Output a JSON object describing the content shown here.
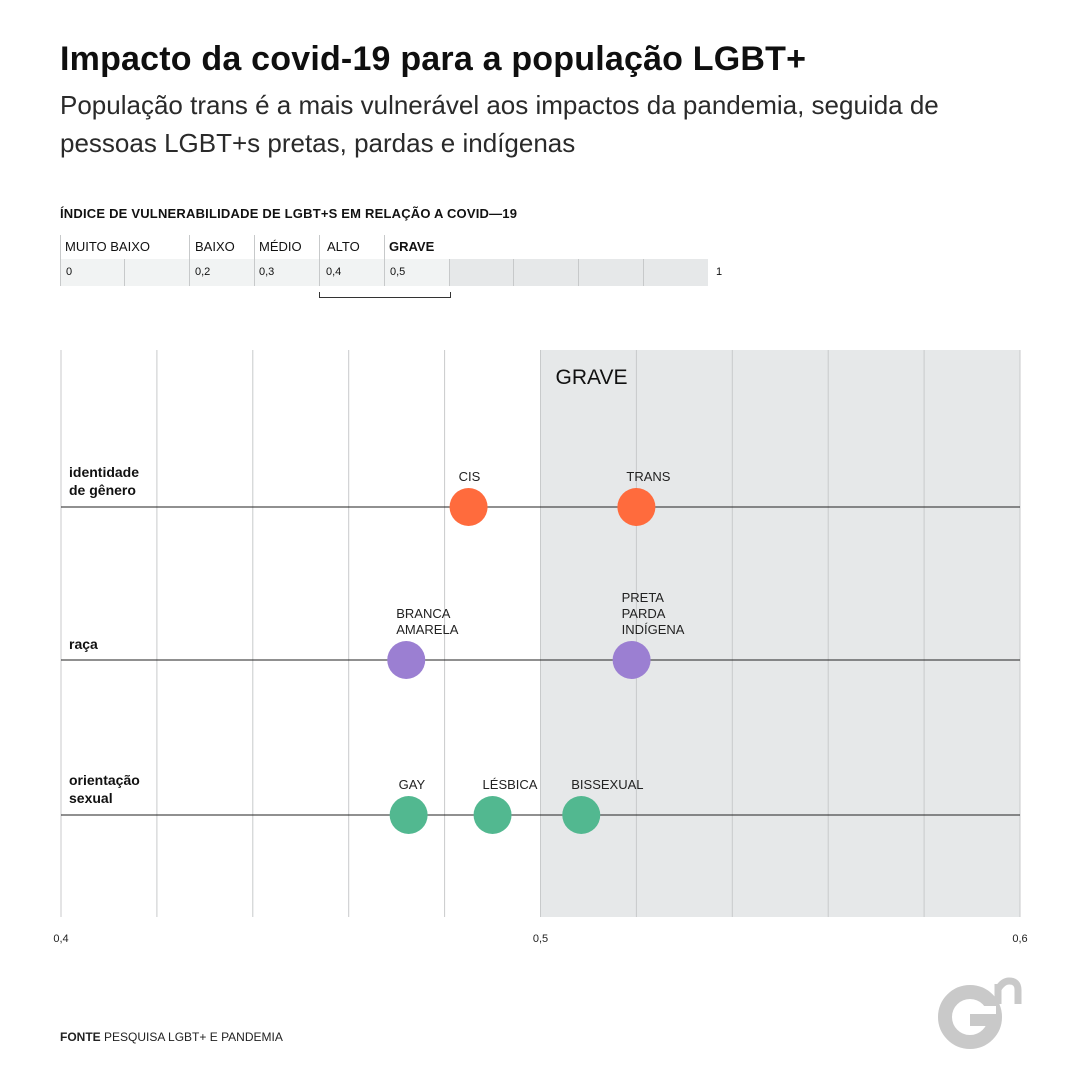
{
  "header": {
    "title": "Impacto da covid-19 para a população LGBT+",
    "subtitle": "População trans é a mais vulnerável aos impactos da pandemia, seguida de pessoas LGBT+s pretas, pardas e indígenas"
  },
  "scale": {
    "heading": "ÍNDICE DE VULNERABILIDADE DE LGBT+S EM RELAÇÃO A COVID—19",
    "categories": [
      {
        "label": "MUITO BAIXO",
        "from": "0"
      },
      {
        "label": "BAIXO",
        "from": "0,2"
      },
      {
        "label": "MÉDIO",
        "from": "0,3"
      },
      {
        "label": "ALTO",
        "from": "0,4"
      },
      {
        "label": "GRAVE",
        "from": "0,5"
      }
    ],
    "end_label": "1"
  },
  "chart_data": {
    "type": "scatter",
    "title": "",
    "xlabel": "",
    "ylabel": "",
    "xlim": [
      0.4,
      0.6
    ],
    "x_tick_labels": [
      "0,4",
      "0,5",
      "0,6"
    ],
    "grid": true,
    "shaded_region": {
      "label": "GRAVE",
      "from": 0.5,
      "to": 0.6
    },
    "rows": [
      {
        "label": "identidade de gênero",
        "color": "#ff6b3d",
        "points": [
          {
            "label": "CIS",
            "x": 0.485
          },
          {
            "label": "TRANS",
            "x": 0.52
          }
        ]
      },
      {
        "label": "raça",
        "color": "#9b7fd2",
        "points": [
          {
            "label": "BRANCA AMARELA",
            "x": 0.472
          },
          {
            "label": "PRETA PARDA INDÍGENA",
            "x": 0.519
          }
        ]
      },
      {
        "label": "orientação sexual",
        "color": "#52b890",
        "points": [
          {
            "label": "GAY",
            "x": 0.4725
          },
          {
            "label": "LÉSBICA",
            "x": 0.49
          },
          {
            "label": "BISSEXUAL",
            "x": 0.5085
          }
        ]
      }
    ]
  },
  "footer": {
    "source_label": "FONTE",
    "source_text": "PESQUISA LGBT+ E PANDEMIA"
  },
  "brand": {
    "logo": "gn-logo-icon",
    "logo_text": "Gn"
  }
}
